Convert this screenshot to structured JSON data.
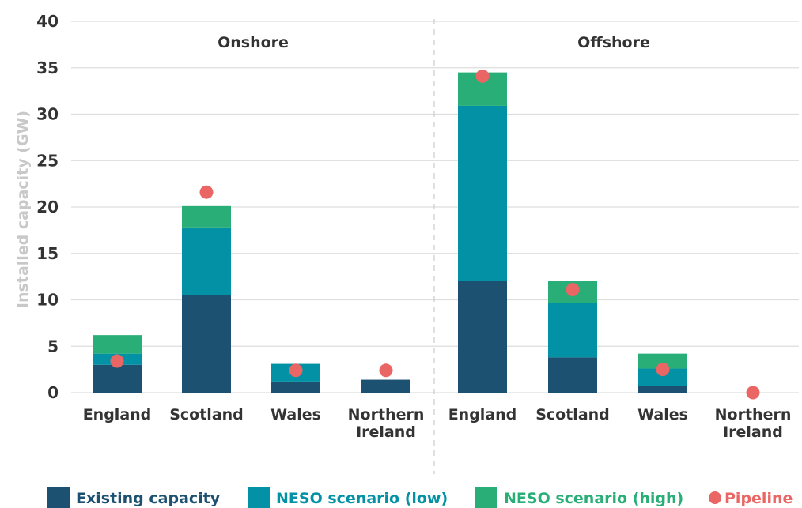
{
  "colors": {
    "existing": "#1d5171",
    "low": "#0392a5",
    "high": "#2aae78",
    "pipeline": "#e96664",
    "grid": "#dddddd",
    "divider": "#cccccc",
    "text": "#333333",
    "axis_title": "#c8c8c8"
  },
  "chart_data": {
    "type": "bar",
    "stacked": true,
    "ylabel": "Installed capacity (GW)",
    "ylim": [
      0,
      40
    ],
    "yticks": [
      0,
      5,
      10,
      15,
      20,
      25,
      30,
      35,
      40
    ],
    "grid": true,
    "legend_position": "bottom",
    "groups": [
      {
        "name": "Onshore",
        "categories": [
          [
            "England"
          ],
          [
            "Scotland"
          ],
          [
            "Wales"
          ],
          [
            "Northern",
            "Ireland"
          ]
        ],
        "existing": [
          3.0,
          10.5,
          1.2,
          1.4
        ],
        "low_total": [
          4.2,
          17.8,
          3.1,
          1.4
        ],
        "high_total": [
          6.2,
          20.1,
          3.1,
          1.4
        ],
        "pipeline": [
          3.4,
          21.6,
          2.4,
          2.4
        ]
      },
      {
        "name": "Offshore",
        "categories": [
          [
            "England"
          ],
          [
            "Scotland"
          ],
          [
            "Wales"
          ],
          [
            "Northern",
            "Ireland"
          ]
        ],
        "existing": [
          12.0,
          3.8,
          0.7,
          0.0
        ],
        "low_total": [
          30.9,
          9.7,
          2.6,
          0.0
        ],
        "high_total": [
          34.5,
          12.0,
          4.2,
          0.0
        ],
        "pipeline": [
          34.1,
          11.1,
          2.5,
          0.0
        ]
      }
    ],
    "legend": [
      {
        "key": "existing",
        "label": "Existing capacity",
        "marker": "square"
      },
      {
        "key": "low",
        "label": "NESO scenario (low)",
        "marker": "square"
      },
      {
        "key": "high",
        "label": "NESO scenario (high)",
        "marker": "square"
      },
      {
        "key": "pipeline",
        "label": "Pipeline",
        "marker": "circle"
      }
    ]
  }
}
